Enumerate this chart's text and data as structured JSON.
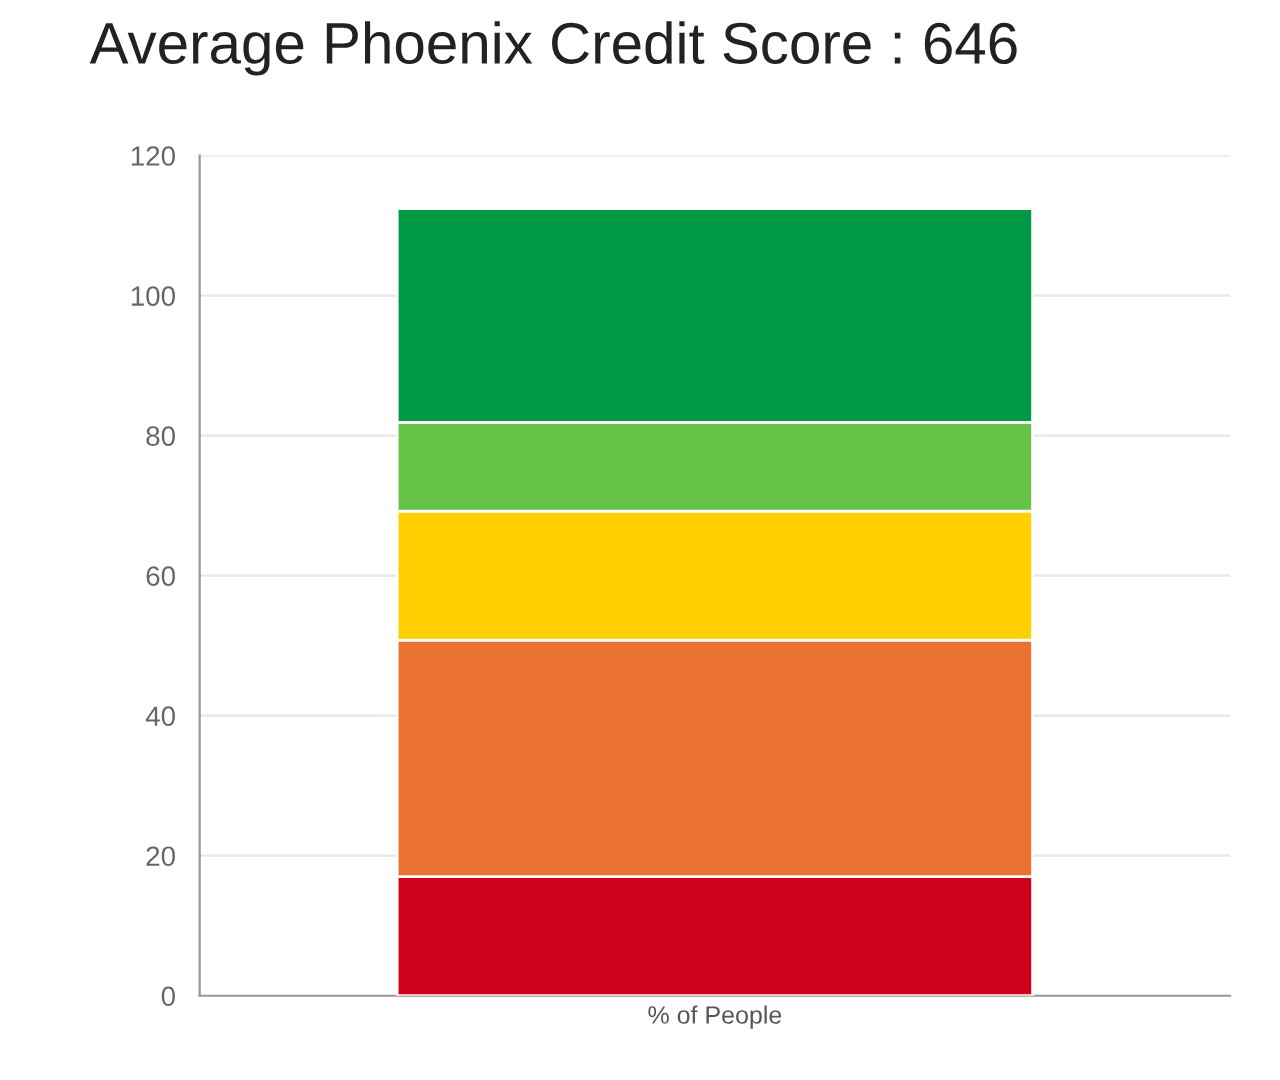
{
  "chart_data": {
    "type": "bar",
    "title": "Average Phoenix Credit Score : 646",
    "stacked": true,
    "categories": [
      "% of People"
    ],
    "series": [
      {
        "color": "#d0021b",
        "values": [
          17
        ]
      },
      {
        "color": "#e97132",
        "values": [
          33.8
        ]
      },
      {
        "color": "#ffcf00",
        "values": [
          18.4
        ]
      },
      {
        "color": "#66c244",
        "values": [
          12.7
        ]
      },
      {
        "color": "#009a44",
        "values": [
          30.5
        ]
      }
    ],
    "ylim": [
      0,
      120
    ],
    "yticks": [
      0,
      20,
      40,
      60,
      80,
      100,
      120
    ],
    "grid": "y"
  }
}
